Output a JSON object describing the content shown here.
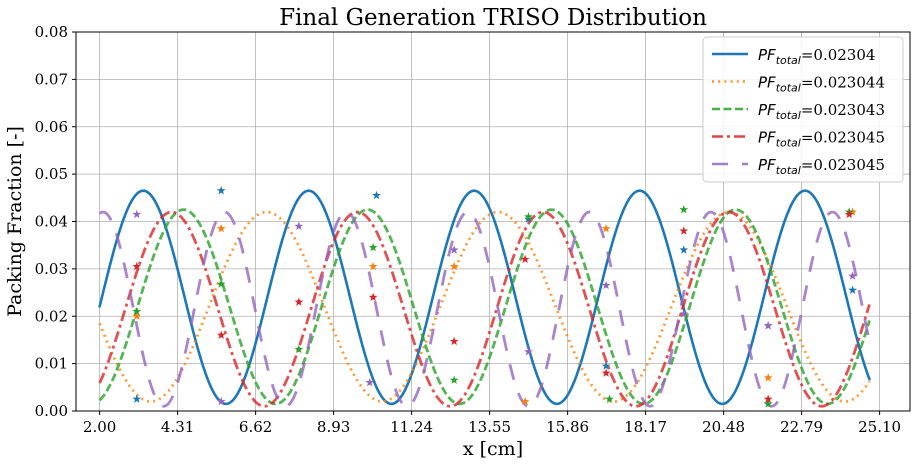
{
  "chart_data": {
    "type": "line",
    "title": "Final Generation TRISO Distribution",
    "xlabel": "x [cm]",
    "ylabel": "Packing Fraction [-]",
    "xlim": [
      1.3,
      26.0
    ],
    "ylim": [
      0.0,
      0.08
    ],
    "xticks": [
      "2.00",
      "4.31",
      "6.62",
      "8.93",
      "11.24",
      "13.55",
      "15.86",
      "18.17",
      "20.48",
      "22.79",
      "25.10"
    ],
    "yticks": [
      "0.00",
      "0.01",
      "0.02",
      "0.03",
      "0.04",
      "0.05",
      "0.06",
      "0.07",
      "0.08"
    ],
    "grid": true,
    "legend_position": "top-right",
    "x_start": 2.0,
    "x_end": 24.8,
    "series": [
      {
        "label_prefix": "PF",
        "label_sub": "total",
        "label_value": "=0.02304",
        "color": "#1f77b4",
        "style": "solid",
        "offset": 0.024,
        "amplitude": 0.0225,
        "period": 4.9,
        "phase": -2.65,
        "markers": [
          [
            3.1,
            0.0025
          ],
          [
            5.6,
            0.0465
          ],
          [
            10.2,
            0.0455
          ],
          [
            14.7,
            0.0405
          ],
          [
            17.0,
            0.0095
          ],
          [
            19.3,
            0.034
          ],
          [
            21.8,
            0.018
          ],
          [
            24.3,
            0.0255
          ]
        ]
      },
      {
        "label_prefix": "PF",
        "label_sub": "total",
        "label_value": "=0.023044",
        "color": "#ff7f0e",
        "style": "dotted",
        "offset": 0.022,
        "amplitude": 0.02,
        "period": 6.85,
        "phase": -4.8,
        "markers": [
          [
            3.1,
            0.02
          ],
          [
            5.6,
            0.0385
          ],
          [
            10.1,
            0.0305
          ],
          [
            12.5,
            0.0305
          ],
          [
            14.6,
            0.002
          ],
          [
            17.0,
            0.0385
          ],
          [
            21.8,
            0.007
          ],
          [
            24.3,
            0.042
          ]
        ]
      },
      {
        "label_prefix": "PF",
        "label_sub": "total",
        "label_value": "=0.023043",
        "color": "#2ca02c",
        "style": "dashed",
        "offset": 0.022,
        "amplitude": 0.0205,
        "period": 5.45,
        "phase": -3.6,
        "markers": [
          [
            3.1,
            0.021
          ],
          [
            5.6,
            0.0268
          ],
          [
            7.9,
            0.013
          ],
          [
            10.1,
            0.0345
          ],
          [
            12.5,
            0.0065
          ],
          [
            14.7,
            0.041
          ],
          [
            17.1,
            0.0025
          ],
          [
            19.3,
            0.0425
          ],
          [
            21.8,
            0.0015
          ],
          [
            24.2,
            0.042
          ]
        ]
      },
      {
        "label_prefix": "PF",
        "label_sub": "total",
        "label_value": "=0.023045",
        "color": "#d62728",
        "style": "dashdot",
        "offset": 0.0215,
        "amplitude": 0.0205,
        "period": 5.5,
        "phase": -3.15,
        "markers": [
          [
            3.1,
            0.0305
          ],
          [
            5.6,
            0.016
          ],
          [
            7.9,
            0.023
          ],
          [
            10.1,
            0.024
          ],
          [
            12.5,
            0.0147
          ],
          [
            14.6,
            0.032
          ],
          [
            17.0,
            0.008
          ],
          [
            19.3,
            0.038
          ],
          [
            21.8,
            0.0025
          ],
          [
            24.2,
            0.0415
          ]
        ]
      },
      {
        "label_prefix": "PF",
        "label_sub": "total",
        "label_value": "=0.023045",
        "color": "#9467bd",
        "style": "longdash",
        "offset": 0.0215,
        "amplitude": 0.0205,
        "period": 3.6,
        "phase": -2.1,
        "markers": [
          [
            3.1,
            0.0415
          ],
          [
            5.6,
            0.002
          ],
          [
            7.9,
            0.039
          ],
          [
            10.0,
            0.006
          ],
          [
            12.5,
            0.034
          ],
          [
            14.7,
            0.0125
          ],
          [
            17.0,
            0.0265
          ],
          [
            19.3,
            0.0205
          ],
          [
            21.8,
            0.018
          ],
          [
            24.3,
            0.0285
          ]
        ]
      }
    ]
  }
}
